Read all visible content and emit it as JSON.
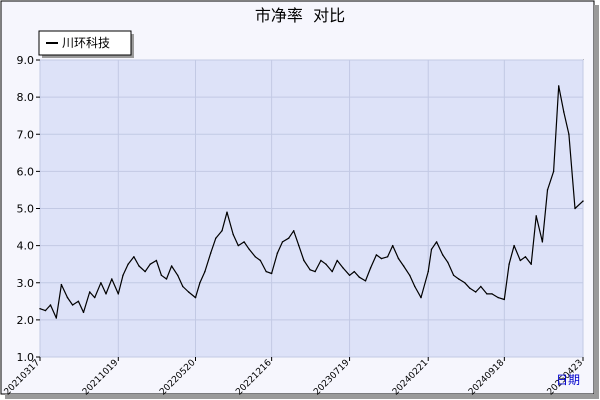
{
  "chart_data": {
    "type": "line",
    "title": "市净率  对比",
    "xlabel": "日期",
    "ylabel": "",
    "ylim": [
      1.0,
      9.0
    ],
    "yticks": [
      "1.0",
      "2.0",
      "3.0",
      "4.0",
      "5.0",
      "6.0",
      "7.0",
      "8.0",
      "9.0"
    ],
    "xticks": [
      "20210317",
      "20211019",
      "20220520",
      "20221216",
      "20230719",
      "20240221",
      "20240918",
      "20250423"
    ],
    "legend": {
      "position": "top-left",
      "entries": [
        "川环科技"
      ]
    },
    "grid": true,
    "colors": {
      "background": "#f6f6fd",
      "plot_bg": "#dde2f8",
      "grid": "#c2c9e4",
      "line": "#000000",
      "axis_title": "#0000cc"
    },
    "series": [
      {
        "name": "川环科技",
        "x": [
          "20210317",
          "20210401",
          "20210415",
          "20210501",
          "20210515",
          "20210601",
          "20210615",
          "20210701",
          "20210715",
          "20210801",
          "20210815",
          "20210901",
          "20210915",
          "20211001",
          "20211019",
          "20211101",
          "20211115",
          "20211201",
          "20211215",
          "20220101",
          "20220115",
          "20220201",
          "20220215",
          "20220301",
          "20220315",
          "20220401",
          "20220415",
          "20220501",
          "20220520",
          "20220601",
          "20220615",
          "20220701",
          "20220715",
          "20220801",
          "20220815",
          "20220901",
          "20220915",
          "20221001",
          "20221015",
          "20221101",
          "20221115",
          "20221201",
          "20221216",
          "20230101",
          "20230115",
          "20230201",
          "20230215",
          "20230301",
          "20230315",
          "20230401",
          "20230415",
          "20230501",
          "20230515",
          "20230601",
          "20230615",
          "20230701",
          "20230719",
          "20230801",
          "20230815",
          "20230901",
          "20230915",
          "20231001",
          "20231015",
          "20231101",
          "20231115",
          "20231201",
          "20231215",
          "20240101",
          "20240115",
          "20240201",
          "20240221",
          "20240301",
          "20240315",
          "20240401",
          "20240415",
          "20240501",
          "20240515",
          "20240601",
          "20240615",
          "20240701",
          "20240715",
          "20240801",
          "20240815",
          "20240901",
          "20240918",
          "20241001",
          "20241015",
          "20241101",
          "20241115",
          "20241201",
          "20241215",
          "20250101",
          "20250115",
          "20250201",
          "20250215",
          "20250301",
          "20250315",
          "20250401",
          "20250423"
        ],
        "values": [
          2.3,
          2.25,
          2.4,
          2.05,
          2.95,
          2.6,
          2.4,
          2.5,
          2.2,
          2.75,
          2.6,
          3.0,
          2.7,
          3.1,
          2.7,
          3.2,
          3.5,
          3.7,
          3.45,
          3.3,
          3.5,
          3.6,
          3.2,
          3.1,
          3.45,
          3.2,
          2.9,
          2.75,
          2.6,
          3.0,
          3.3,
          3.8,
          4.2,
          4.4,
          4.9,
          4.3,
          4.0,
          4.1,
          3.9,
          3.7,
          3.6,
          3.3,
          3.25,
          3.8,
          4.1,
          4.2,
          4.4,
          4.0,
          3.6,
          3.35,
          3.3,
          3.6,
          3.5,
          3.3,
          3.6,
          3.4,
          3.2,
          3.3,
          3.15,
          3.05,
          3.4,
          3.75,
          3.65,
          3.7,
          4.0,
          3.65,
          3.45,
          3.2,
          2.9,
          2.6,
          3.3,
          3.9,
          4.1,
          3.75,
          3.55,
          3.2,
          3.1,
          3.0,
          2.85,
          2.75,
          2.9,
          2.7,
          2.7,
          2.6,
          2.55,
          3.5,
          4.0,
          3.6,
          3.7,
          3.5,
          4.8,
          4.1,
          5.5,
          6.0,
          8.3,
          7.6,
          7.0,
          5.0,
          5.2
        ]
      }
    ]
  }
}
